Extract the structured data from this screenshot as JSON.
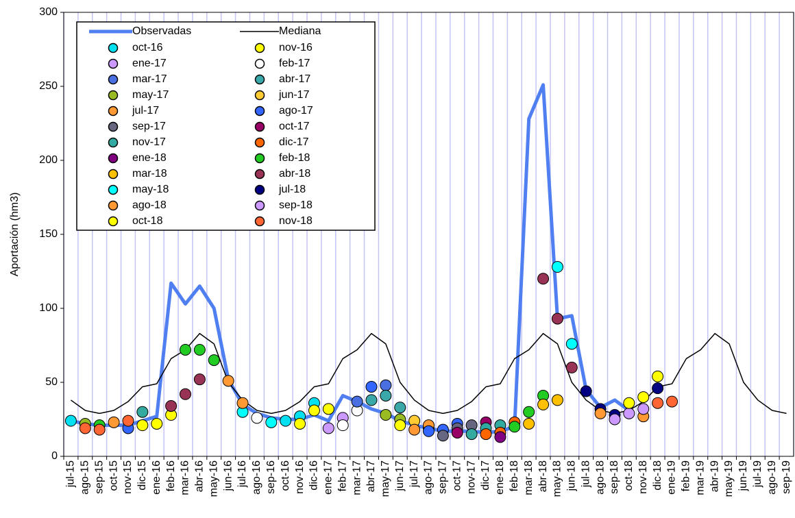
{
  "chart_data": {
    "type": "line",
    "y_label": "Aportación (hm3)",
    "categories": [
      "jul-15",
      "ago-15",
      "sep-15",
      "oct-15",
      "nov-15",
      "dic-15",
      "ene-16",
      "feb-16",
      "mar-16",
      "abr-16",
      "may-16",
      "jun-16",
      "jul-16",
      "ago-16",
      "sep-16",
      "oct-16",
      "nov-16",
      "dic-16",
      "ene-17",
      "feb-17",
      "mar-17",
      "abr-17",
      "may-17",
      "jun-17",
      "jul-17",
      "ago-17",
      "sep-17",
      "oct-17",
      "nov-17",
      "dic-17",
      "ene-18",
      "feb-18",
      "mar-18",
      "abr-18",
      "may-18",
      "jun-18",
      "jul-18",
      "ago-18",
      "sep-18",
      "oct-18",
      "nov-18",
      "dic-18",
      "ene-19",
      "feb-19",
      "mar-19",
      "abr-19",
      "may-19",
      "jun-19",
      "jul-19",
      "ago-19",
      "sep-19"
    ],
    "ylim": [
      0,
      300
    ],
    "yticks": [
      0,
      50,
      100,
      150,
      200,
      250,
      300
    ],
    "grid": true,
    "series": [
      {
        "name": "Observadas",
        "type": "line",
        "color": "#4f7ff0",
        "values": [
          24,
          22,
          21,
          21,
          21,
          24,
          27,
          117,
          103,
          115,
          100,
          52,
          35,
          29,
          26,
          25,
          25,
          28,
          24,
          41,
          37,
          32,
          29,
          24,
          21,
          19,
          17,
          17,
          17,
          16,
          17,
          20,
          228,
          251,
          93,
          95,
          45,
          33,
          38,
          31,
          null,
          null,
          null,
          null,
          null,
          null,
          null,
          null,
          null,
          null,
          null
        ]
      },
      {
        "name": "Mediana",
        "type": "line",
        "color": "#000000",
        "values": [
          38,
          31,
          29,
          31,
          37,
          47,
          49,
          66,
          72,
          83,
          76,
          50,
          38,
          31,
          29,
          31,
          37,
          47,
          49,
          66,
          72,
          83,
          76,
          50,
          38,
          31,
          29,
          31,
          37,
          47,
          49,
          66,
          72,
          83,
          76,
          50,
          38,
          31,
          29,
          31,
          37,
          47,
          49,
          66,
          72,
          83,
          76,
          50,
          38,
          31,
          29
        ]
      },
      {
        "name": "oct-16",
        "type": "scatter",
        "color": "#00e0f0",
        "x": [
          "jul-15",
          "oct-16",
          "nov-16",
          "dic-16"
        ],
        "values": [
          24,
          24,
          27,
          36
        ]
      },
      {
        "name": "nov-16",
        "type": "scatter",
        "color": "#ffff00",
        "x": [
          "dic-15",
          "ene-16",
          "feb-16",
          "nov-16",
          "dic-16",
          "ene-17"
        ],
        "values": [
          21,
          22,
          28,
          22,
          31,
          32
        ]
      },
      {
        "name": "ene-17",
        "type": "scatter",
        "color": "#cc99ff",
        "x": [
          "ene-17",
          "feb-17"
        ],
        "values": [
          19,
          26
        ]
      },
      {
        "name": "feb-17",
        "type": "scatter",
        "color": "#ffffff",
        "x": [
          "ago-16",
          "feb-17",
          "mar-17"
        ],
        "values": [
          26,
          21,
          31
        ]
      },
      {
        "name": "mar-17",
        "type": "scatter",
        "color": "#4a6fe0",
        "x": [
          "mar-17",
          "may-17"
        ],
        "values": [
          37,
          48
        ]
      },
      {
        "name": "abr-17",
        "type": "scatter",
        "color": "#3aa8a8",
        "x": [
          "abr-17",
          "may-17",
          "jun-17"
        ],
        "values": [
          38,
          41,
          33
        ]
      },
      {
        "name": "may-17",
        "type": "scatter",
        "color": "#99bb22",
        "x": [
          "ago-15",
          "may-17",
          "jun-17"
        ],
        "values": [
          22,
          28,
          25
        ]
      },
      {
        "name": "jun-17",
        "type": "scatter",
        "color": "#ffcc33",
        "x": [
          "jul-17",
          "ago-17"
        ],
        "values": [
          24,
          19
        ]
      },
      {
        "name": "jul-17",
        "type": "scatter",
        "color": "#ff9933",
        "x": [
          "oct-15",
          "jul-17",
          "ago-17"
        ],
        "values": [
          23,
          18,
          21
        ]
      },
      {
        "name": "ago-17",
        "type": "scatter",
        "color": "#3366ff",
        "x": [
          "nov-15",
          "abr-17",
          "ago-17",
          "sep-17",
          "oct-17"
        ],
        "values": [
          19,
          47,
          17,
          18,
          22
        ]
      },
      {
        "name": "sep-17",
        "type": "scatter",
        "color": "#666680",
        "x": [
          "sep-17",
          "oct-17",
          "nov-17"
        ],
        "values": [
          14,
          19,
          21
        ]
      },
      {
        "name": "oct-17",
        "type": "scatter",
        "color": "#990066",
        "x": [
          "oct-17",
          "dic-17"
        ],
        "values": [
          16,
          23
        ]
      },
      {
        "name": "nov-17",
        "type": "scatter",
        "color": "#33aaa0",
        "x": [
          "dic-15",
          "nov-17",
          "dic-17",
          "ene-18"
        ],
        "values": [
          30,
          15,
          19,
          21
        ]
      },
      {
        "name": "dic-17",
        "type": "scatter",
        "color": "#ff6600",
        "x": [
          "dic-17",
          "ene-18",
          "feb-18"
        ],
        "values": [
          15,
          16,
          23
        ]
      },
      {
        "name": "ene-18",
        "type": "scatter",
        "color": "#800080",
        "x": [
          "ene-18"
        ],
        "values": [
          13
        ]
      },
      {
        "name": "feb-18",
        "type": "scatter",
        "color": "#22cc22",
        "x": [
          "sep-15",
          "mar-16",
          "abr-16",
          "may-16",
          "feb-18",
          "mar-18",
          "abr-18"
        ],
        "values": [
          21,
          72,
          72,
          65,
          20,
          30,
          41
        ]
      },
      {
        "name": "mar-18",
        "type": "scatter",
        "color": "#ffc000",
        "x": [
          "mar-18",
          "abr-18",
          "may-18"
        ],
        "values": [
          22,
          35,
          38
        ]
      },
      {
        "name": "abr-18",
        "type": "scatter",
        "color": "#993355",
        "x": [
          "feb-16",
          "mar-16",
          "abr-16",
          "abr-18",
          "may-18",
          "jun-18"
        ],
        "values": [
          34,
          42,
          52,
          120,
          93,
          60
        ]
      },
      {
        "name": "may-18",
        "type": "scatter",
        "color": "#00ffff",
        "x": [
          "jul-16",
          "sep-16",
          "may-18",
          "jun-18"
        ],
        "values": [
          30,
          23,
          128,
          76
        ]
      },
      {
        "name": "jul-18",
        "type": "scatter",
        "color": "#000080",
        "x": [
          "jul-18",
          "ago-18",
          "sep-18",
          "dic-18"
        ],
        "values": [
          44,
          32,
          28,
          46
        ]
      },
      {
        "name": "ago-18",
        "type": "scatter",
        "color": "#ff9933",
        "x": [
          "jun-16",
          "jul-16",
          "ago-18",
          "nov-18"
        ],
        "values": [
          51,
          36,
          29,
          27
        ]
      },
      {
        "name": "sep-18",
        "type": "scatter",
        "color": "#cc99ff",
        "x": [
          "sep-18",
          "oct-18",
          "nov-18"
        ],
        "values": [
          25,
          29,
          32
        ]
      },
      {
        "name": "oct-18",
        "type": "scatter",
        "color": "#ffff00",
        "x": [
          "jun-17",
          "oct-18",
          "nov-18",
          "dic-18"
        ],
        "values": [
          21,
          36,
          40,
          54
        ]
      },
      {
        "name": "nov-18",
        "type": "scatter",
        "color": "#ff6633",
        "x": [
          "ago-15",
          "sep-15",
          "nov-15",
          "dic-18",
          "ene-19"
        ],
        "values": [
          19,
          18,
          24,
          36,
          37
        ]
      }
    ]
  }
}
